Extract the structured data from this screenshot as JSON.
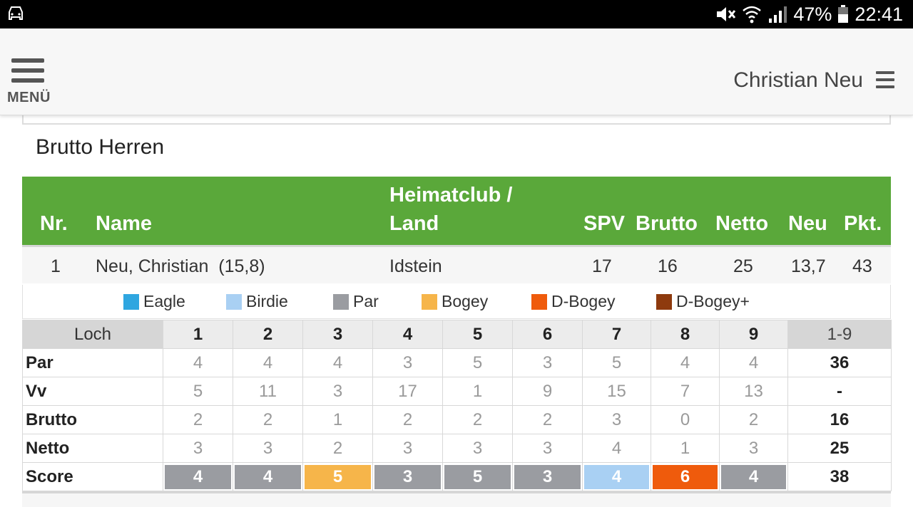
{
  "status_bar": {
    "battery": "47%",
    "time": "22:41",
    "icons": [
      "car-mode-icon",
      "mute-icon",
      "wifi-icon",
      "signal-icon",
      "battery-icon"
    ]
  },
  "header": {
    "menu_label": "MENÜ",
    "user_name": "Christian Neu"
  },
  "section_title": "Brutto Herren",
  "results": {
    "headers": {
      "nr": "Nr.",
      "name": "Name",
      "club_line1": "Heimatclub /",
      "club_line2": "Land",
      "spv": "SPV",
      "brutto": "Brutto",
      "netto": "Netto",
      "neu": "Neu",
      "pkt": "Pkt."
    },
    "row": {
      "nr": "1",
      "name": "Neu, Christian  (15,8)",
      "club": "Idstein",
      "spv": "17",
      "brutto": "16",
      "netto": "25",
      "neu": "13,7",
      "pkt": "43"
    }
  },
  "legend": [
    {
      "label": "Eagle",
      "color": "#2fa6e0"
    },
    {
      "label": "Birdie",
      "color": "#a9d0f3"
    },
    {
      "label": "Par",
      "color": "#9a9ca1"
    },
    {
      "label": "Bogey",
      "color": "#f6b54a"
    },
    {
      "label": "D-Bogey",
      "color": "#ef5b0c"
    },
    {
      "label": "D-Bogey+",
      "color": "#8e3a0e"
    }
  ],
  "scorecard": {
    "loch_label": "Loch",
    "holes": [
      "1",
      "2",
      "3",
      "4",
      "5",
      "6",
      "7",
      "8",
      "9"
    ],
    "sum_label": "1-9",
    "rows": [
      {
        "label": "Par",
        "values": [
          "4",
          "4",
          "4",
          "3",
          "5",
          "3",
          "5",
          "4",
          "4"
        ],
        "sum": "36"
      },
      {
        "label": "Vv",
        "values": [
          "5",
          "11",
          "3",
          "17",
          "1",
          "9",
          "15",
          "7",
          "13"
        ],
        "sum": "-"
      },
      {
        "label": "Brutto",
        "values": [
          "2",
          "2",
          "1",
          "2",
          "2",
          "2",
          "3",
          "0",
          "2"
        ],
        "sum": "16"
      },
      {
        "label": "Netto",
        "values": [
          "3",
          "3",
          "2",
          "3",
          "3",
          "3",
          "4",
          "1",
          "3"
        ],
        "sum": "25"
      }
    ],
    "score": {
      "label": "Score",
      "values": [
        "4",
        "4",
        "5",
        "3",
        "5",
        "3",
        "4",
        "6",
        "4"
      ],
      "colors": [
        "#9a9ca1",
        "#9a9ca1",
        "#f6b54a",
        "#9a9ca1",
        "#9a9ca1",
        "#9a9ca1",
        "#a9d0f3",
        "#ef5b0c",
        "#9a9ca1"
      ],
      "sum": "38"
    }
  }
}
